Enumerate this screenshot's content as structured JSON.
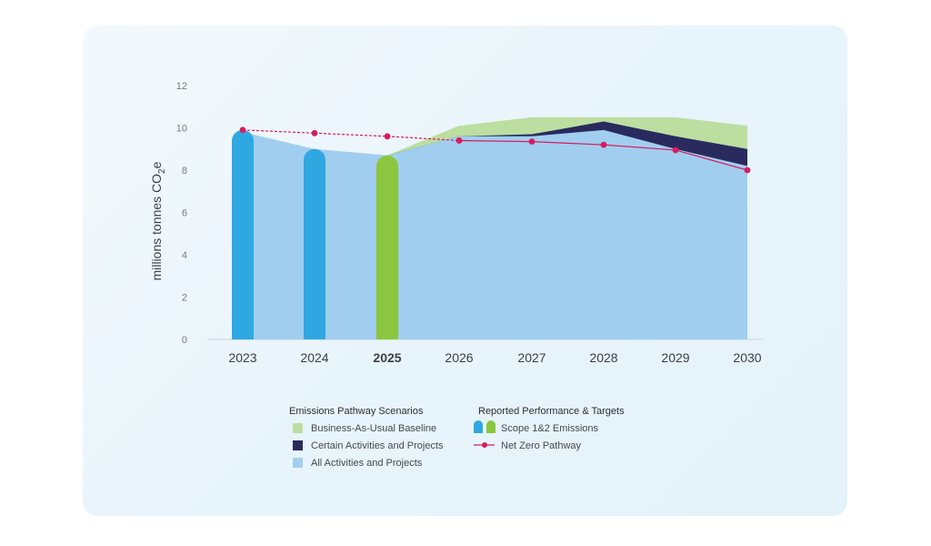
{
  "chart_data": {
    "type": "area",
    "ylabel_main": "millions tonnes CO",
    "ylabel_sub": "2",
    "ylabel_end": "e",
    "ylim": [
      0,
      12
    ],
    "yticks": [
      "0",
      "2",
      "4",
      "6",
      "8",
      "10",
      "12"
    ],
    "categories": [
      "2023",
      "2024",
      "2025",
      "2026",
      "2027",
      "2028",
      "2029",
      "2030"
    ],
    "highlight_category": "2025",
    "areas": {
      "all_activities": [
        9.8,
        9.0,
        8.7,
        9.6,
        9.6,
        9.9,
        9.0,
        8.2
      ],
      "certain_activities": [
        null,
        null,
        8.7,
        9.6,
        9.7,
        10.3,
        9.6,
        9.0
      ],
      "business_as_usual": [
        null,
        null,
        8.7,
        10.1,
        10.5,
        10.5,
        10.5,
        10.1
      ]
    },
    "bars": [
      {
        "year": "2023",
        "value": 9.9,
        "color": "#2fa8e2"
      },
      {
        "year": "2024",
        "value": 9.0,
        "color": "#2fa8e2"
      },
      {
        "year": "2025",
        "value": 8.7,
        "color": "#8cc63e"
      }
    ],
    "net_zero_pathway": [
      9.9,
      9.75,
      9.6,
      9.4,
      9.35,
      9.2,
      8.95,
      8.0
    ],
    "colors": {
      "all_activities": "#a1ceef",
      "certain_activities": "#292a5e",
      "business_as_usual": "#bcdea0",
      "scope_blue": "#2fa8e2",
      "scope_green": "#8cc63e",
      "net_zero": "#d81b5e"
    },
    "legend": {
      "group1_title": "Emissions Pathway Scenarios",
      "group1_items": [
        "Business-As-Usual Baseline",
        "Certain Activities and Projects",
        "All Activities and Projects"
      ],
      "group2_title": "Reported Performance & Targets",
      "group2_items": [
        "Scope 1&2 Emissions",
        "Net Zero Pathway"
      ]
    }
  }
}
